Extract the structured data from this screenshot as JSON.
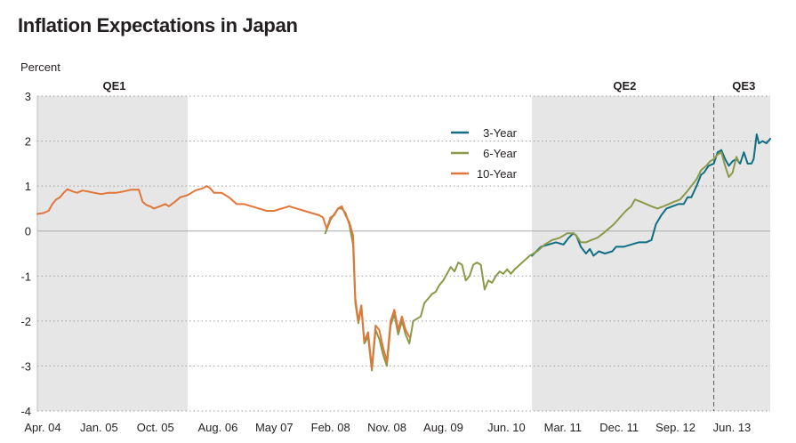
{
  "chart_data": {
    "type": "line",
    "title": "Inflation Expectations in Japan",
    "xlabel": "",
    "ylabel": "Percent",
    "ylim": [
      -4,
      3
    ],
    "yticks": [
      3,
      2,
      1,
      0,
      -1,
      -2,
      -3,
      -4
    ],
    "x_unit": "decimal year",
    "xlim": [
      2004.25,
      2014.0
    ],
    "xticks": [
      {
        "x": 2004.25,
        "label": "Apr. 04"
      },
      {
        "x": 2005.0,
        "label": "Jan. 05"
      },
      {
        "x": 2005.75,
        "label": "Oct. 05"
      },
      {
        "x": 2006.58,
        "label": "Aug. 06"
      },
      {
        "x": 2007.33,
        "label": "May 07"
      },
      {
        "x": 2008.08,
        "label": "Feb. 08"
      },
      {
        "x": 2008.83,
        "label": "Nov. 08"
      },
      {
        "x": 2009.58,
        "label": "Aug. 09"
      },
      {
        "x": 2010.42,
        "label": "Jun. 10"
      },
      {
        "x": 2011.17,
        "label": "Mar. 11"
      },
      {
        "x": 2011.92,
        "label": "Dec. 11"
      },
      {
        "x": 2012.67,
        "label": "Sep. 12"
      },
      {
        "x": 2013.42,
        "label": "Jun. 13"
      }
    ],
    "shaded_periods": [
      {
        "label": "QE1",
        "start": 2004.25,
        "end": 2006.25
      },
      {
        "label": "QE2",
        "start": 2010.83,
        "end": 2013.25
      },
      {
        "label": "QE3",
        "start": 2013.25,
        "end": 2014.0
      }
    ],
    "vline": {
      "x": 2013.25,
      "style": "dashed"
    },
    "zero_line": 0,
    "legend_position": "top-right",
    "series": [
      {
        "name": "3-Year",
        "color": "#0f6e83",
        "points": [
          [
            2010.83,
            -0.55
          ],
          [
            2010.95,
            -0.35
          ],
          [
            2011.05,
            -0.3
          ],
          [
            2011.15,
            -0.25
          ],
          [
            2011.25,
            -0.3
          ],
          [
            2011.32,
            -0.15
          ],
          [
            2011.38,
            -0.05
          ],
          [
            2011.42,
            -0.1
          ],
          [
            2011.48,
            -0.35
          ],
          [
            2011.55,
            -0.5
          ],
          [
            2011.6,
            -0.4
          ],
          [
            2011.65,
            -0.55
          ],
          [
            2011.72,
            -0.45
          ],
          [
            2011.8,
            -0.5
          ],
          [
            2011.9,
            -0.45
          ],
          [
            2011.95,
            -0.35
          ],
          [
            2012.05,
            -0.35
          ],
          [
            2012.15,
            -0.3
          ],
          [
            2012.25,
            -0.25
          ],
          [
            2012.35,
            -0.25
          ],
          [
            2012.42,
            -0.2
          ],
          [
            2012.48,
            0.15
          ],
          [
            2012.55,
            0.35
          ],
          [
            2012.62,
            0.5
          ],
          [
            2012.7,
            0.55
          ],
          [
            2012.78,
            0.6
          ],
          [
            2012.85,
            0.6
          ],
          [
            2012.9,
            0.75
          ],
          [
            2012.95,
            0.75
          ],
          [
            2013.02,
            1.0
          ],
          [
            2013.08,
            1.25
          ],
          [
            2013.12,
            1.3
          ],
          [
            2013.18,
            1.45
          ],
          [
            2013.25,
            1.5
          ],
          [
            2013.3,
            1.75
          ],
          [
            2013.35,
            1.8
          ],
          [
            2013.4,
            1.6
          ],
          [
            2013.45,
            1.45
          ],
          [
            2013.5,
            1.55
          ],
          [
            2013.55,
            1.6
          ],
          [
            2013.6,
            1.5
          ],
          [
            2013.65,
            1.75
          ],
          [
            2013.7,
            1.5
          ],
          [
            2013.75,
            1.5
          ],
          [
            2013.78,
            1.6
          ],
          [
            2013.82,
            2.15
          ],
          [
            2013.85,
            1.95
          ],
          [
            2013.9,
            2.0
          ],
          [
            2013.95,
            1.95
          ],
          [
            2014.0,
            2.05
          ]
        ]
      },
      {
        "name": "6-Year",
        "color": "#8a9a48",
        "points": [
          [
            2008.08,
            -0.05
          ],
          [
            2008.15,
            0.25
          ],
          [
            2008.25,
            0.5
          ],
          [
            2008.3,
            0.5
          ],
          [
            2008.35,
            0.4
          ],
          [
            2008.4,
            0.15
          ],
          [
            2008.45,
            -0.3
          ],
          [
            2008.48,
            -1.6
          ],
          [
            2008.52,
            -2.05
          ],
          [
            2008.56,
            -1.7
          ],
          [
            2008.6,
            -2.5
          ],
          [
            2008.65,
            -2.35
          ],
          [
            2008.7,
            -3.1
          ],
          [
            2008.75,
            -2.2
          ],
          [
            2008.8,
            -2.4
          ],
          [
            2008.85,
            -2.75
          ],
          [
            2008.9,
            -3.0
          ],
          [
            2008.95,
            -2.1
          ],
          [
            2009.0,
            -1.85
          ],
          [
            2009.05,
            -2.3
          ],
          [
            2009.1,
            -2.0
          ],
          [
            2009.15,
            -2.3
          ],
          [
            2009.2,
            -2.5
          ],
          [
            2009.25,
            -2.0
          ],
          [
            2009.3,
            -1.95
          ],
          [
            2009.35,
            -1.9
          ],
          [
            2009.4,
            -1.6
          ],
          [
            2009.45,
            -1.5
          ],
          [
            2009.5,
            -1.4
          ],
          [
            2009.55,
            -1.35
          ],
          [
            2009.6,
            -1.2
          ],
          [
            2009.65,
            -1.1
          ],
          [
            2009.7,
            -0.95
          ],
          [
            2009.75,
            -0.8
          ],
          [
            2009.8,
            -0.9
          ],
          [
            2009.85,
            -0.7
          ],
          [
            2009.9,
            -0.75
          ],
          [
            2009.95,
            -1.1
          ],
          [
            2010.0,
            -1.0
          ],
          [
            2010.05,
            -0.75
          ],
          [
            2010.1,
            -0.7
          ],
          [
            2010.15,
            -0.75
          ],
          [
            2010.2,
            -1.3
          ],
          [
            2010.25,
            -1.1
          ],
          [
            2010.3,
            -1.15
          ],
          [
            2010.35,
            -1.0
          ],
          [
            2010.4,
            -0.9
          ],
          [
            2010.45,
            -0.95
          ],
          [
            2010.5,
            -0.85
          ],
          [
            2010.55,
            -0.95
          ],
          [
            2010.6,
            -0.85
          ],
          [
            2010.7,
            -0.7
          ],
          [
            2010.8,
            -0.55
          ],
          [
            2010.9,
            -0.45
          ],
          [
            2011.0,
            -0.3
          ],
          [
            2011.1,
            -0.2
          ],
          [
            2011.2,
            -0.15
          ],
          [
            2011.3,
            -0.05
          ],
          [
            2011.38,
            -0.05
          ],
          [
            2011.42,
            -0.1
          ],
          [
            2011.48,
            -0.25
          ],
          [
            2011.55,
            -0.25
          ],
          [
            2011.62,
            -0.2
          ],
          [
            2011.7,
            -0.15
          ],
          [
            2011.78,
            -0.05
          ],
          [
            2011.85,
            0.05
          ],
          [
            2011.92,
            0.15
          ],
          [
            2012.0,
            0.3
          ],
          [
            2012.08,
            0.45
          ],
          [
            2012.15,
            0.55
          ],
          [
            2012.2,
            0.7
          ],
          [
            2012.28,
            0.65
          ],
          [
            2012.35,
            0.6
          ],
          [
            2012.42,
            0.55
          ],
          [
            2012.5,
            0.5
          ],
          [
            2012.58,
            0.55
          ],
          [
            2012.65,
            0.6
          ],
          [
            2012.72,
            0.65
          ],
          [
            2012.8,
            0.7
          ],
          [
            2012.88,
            0.85
          ],
          [
            2012.95,
            1.0
          ],
          [
            2013.02,
            1.15
          ],
          [
            2013.08,
            1.35
          ],
          [
            2013.15,
            1.45
          ],
          [
            2013.2,
            1.55
          ],
          [
            2013.25,
            1.6
          ],
          [
            2013.3,
            1.7
          ],
          [
            2013.35,
            1.75
          ],
          [
            2013.4,
            1.45
          ],
          [
            2013.45,
            1.2
          ],
          [
            2013.5,
            1.3
          ],
          [
            2013.55,
            1.65
          ],
          [
            2013.58,
            1.55
          ]
        ]
      },
      {
        "name": "10-Year",
        "color": "#e2763a",
        "points": [
          [
            2004.25,
            0.38
          ],
          [
            2004.33,
            0.4
          ],
          [
            2004.4,
            0.45
          ],
          [
            2004.45,
            0.6
          ],
          [
            2004.5,
            0.7
          ],
          [
            2004.55,
            0.75
          ],
          [
            2004.6,
            0.85
          ],
          [
            2004.65,
            0.93
          ],
          [
            2004.72,
            0.88
          ],
          [
            2004.78,
            0.85
          ],
          [
            2004.85,
            0.9
          ],
          [
            2004.92,
            0.88
          ],
          [
            2005.0,
            0.85
          ],
          [
            2005.1,
            0.82
          ],
          [
            2005.2,
            0.85
          ],
          [
            2005.3,
            0.85
          ],
          [
            2005.4,
            0.88
          ],
          [
            2005.5,
            0.92
          ],
          [
            2005.6,
            0.92
          ],
          [
            2005.65,
            0.65
          ],
          [
            2005.7,
            0.58
          ],
          [
            2005.75,
            0.55
          ],
          [
            2005.8,
            0.5
          ],
          [
            2005.88,
            0.55
          ],
          [
            2005.95,
            0.6
          ],
          [
            2006.0,
            0.55
          ],
          [
            2006.08,
            0.65
          ],
          [
            2006.15,
            0.75
          ],
          [
            2006.25,
            0.8
          ],
          [
            2006.35,
            0.9
          ],
          [
            2006.45,
            0.95
          ],
          [
            2006.5,
            1.0
          ],
          [
            2006.55,
            0.95
          ],
          [
            2006.6,
            0.85
          ],
          [
            2006.7,
            0.85
          ],
          [
            2006.8,
            0.75
          ],
          [
            2006.9,
            0.6
          ],
          [
            2007.0,
            0.6
          ],
          [
            2007.1,
            0.55
          ],
          [
            2007.2,
            0.5
          ],
          [
            2007.3,
            0.45
          ],
          [
            2007.4,
            0.45
          ],
          [
            2007.5,
            0.5
          ],
          [
            2007.6,
            0.55
          ],
          [
            2007.7,
            0.5
          ],
          [
            2007.8,
            0.45
          ],
          [
            2007.9,
            0.4
          ],
          [
            2008.0,
            0.35
          ],
          [
            2008.05,
            0.3
          ],
          [
            2008.1,
            0.05
          ],
          [
            2008.15,
            0.3
          ],
          [
            2008.2,
            0.35
          ],
          [
            2008.25,
            0.5
          ],
          [
            2008.3,
            0.55
          ],
          [
            2008.35,
            0.35
          ],
          [
            2008.4,
            0.2
          ],
          [
            2008.45,
            -0.1
          ],
          [
            2008.48,
            -1.5
          ],
          [
            2008.52,
            -2.0
          ],
          [
            2008.56,
            -1.65
          ],
          [
            2008.6,
            -2.45
          ],
          [
            2008.65,
            -2.25
          ],
          [
            2008.7,
            -3.05
          ],
          [
            2008.75,
            -2.1
          ],
          [
            2008.8,
            -2.2
          ],
          [
            2008.85,
            -2.6
          ],
          [
            2008.9,
            -2.9
          ],
          [
            2008.95,
            -2.0
          ],
          [
            2009.0,
            -1.75
          ],
          [
            2009.05,
            -2.2
          ],
          [
            2009.1,
            -1.9
          ],
          [
            2009.15,
            -2.2
          ],
          [
            2009.2,
            -2.35
          ]
        ]
      }
    ]
  }
}
